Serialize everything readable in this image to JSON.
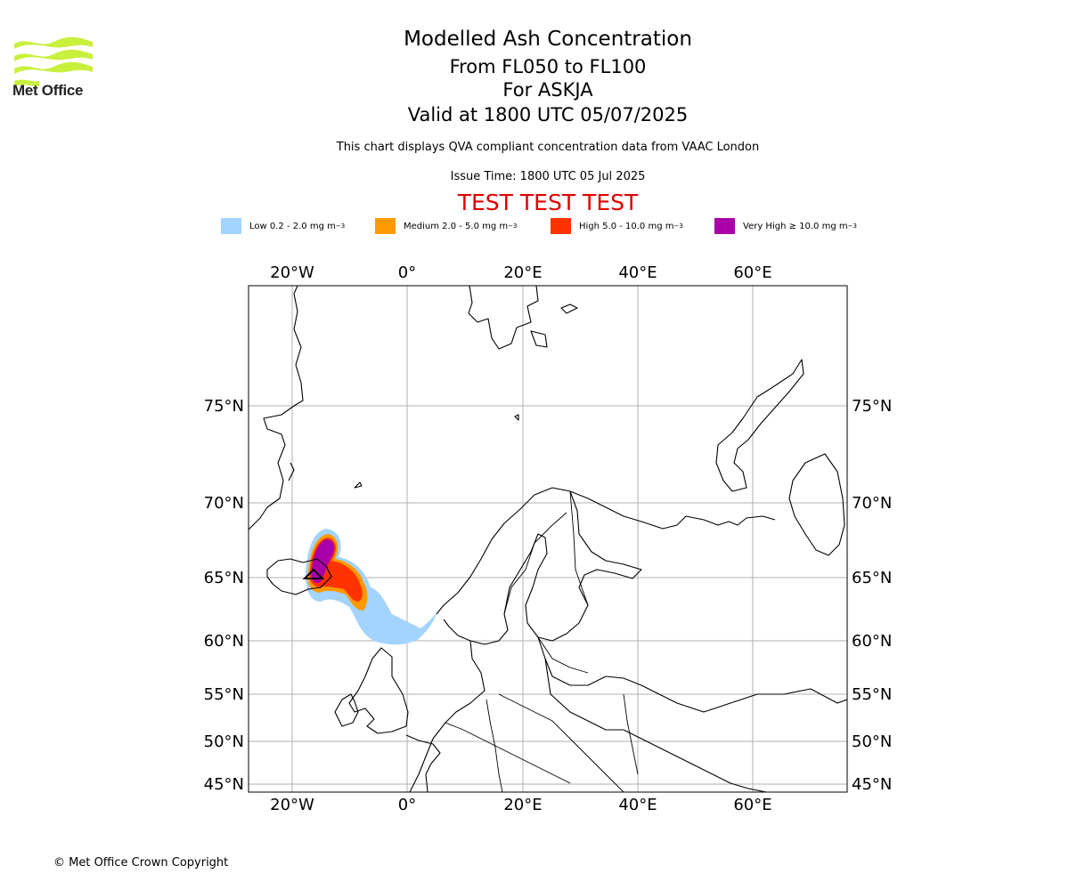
{
  "header": {
    "title": "Modelled Ash Concentration",
    "level_range": "From FL050 to FL100",
    "volcano": "For ASKJA",
    "valid_time": "Valid at 1800 UTC 05/07/2025",
    "note": "This chart displays QVA compliant concentration data from VAAC London",
    "issue_time": "Issue Time: 1800 UTC 05 Jul 2025",
    "test_banner": "TEST TEST TEST"
  },
  "logo": {
    "text": "Met Office",
    "color": "#c8f03c"
  },
  "legend": [
    {
      "label": "Low 0.2 - 2.0 mg m",
      "exp": "−3",
      "color": "#a3d3ff"
    },
    {
      "label": "Medium 2.0 - 5.0 mg m",
      "exp": "−3",
      "color": "#ff9900"
    },
    {
      "label": "High 5.0 - 10.0 mg m",
      "exp": "−3",
      "color": "#ff3300"
    },
    {
      "label": "Very High  ≥  10.0 mg m",
      "exp": "−3",
      "color": "#aa00aa"
    }
  ],
  "map": {
    "lon_ticks": [
      "20°W",
      "0°",
      "20°E",
      "40°E",
      "60°E"
    ],
    "lat_ticks": [
      "75°N",
      "70°N",
      "65°N",
      "60°N",
      "55°N",
      "50°N",
      "45°N"
    ],
    "colors": {
      "coast": "#000000",
      "grid": "#b0b0b0"
    }
  },
  "footer": {
    "copyright": "© Met Office Crown Copyright"
  }
}
